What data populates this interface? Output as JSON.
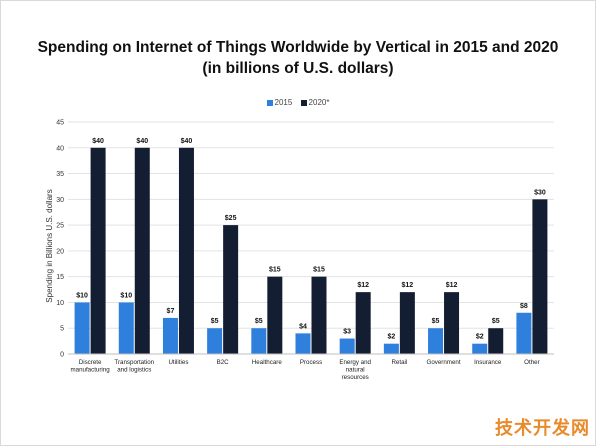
{
  "chart_data": {
    "type": "bar",
    "title": "Spending on Internet of Things Worldwide by Vertical in 2015 and 2020",
    "subtitle": "(in billions of U.S. dollars)",
    "ylabel": "Spending in Billions U.S. dollars",
    "xlabel": "",
    "ylim": [
      0,
      45
    ],
    "yticks": [
      0,
      5,
      10,
      15,
      20,
      25,
      30,
      35,
      40,
      45
    ],
    "grid": true,
    "legend": "top-center",
    "categories": [
      [
        "Discrete",
        "manufacturing"
      ],
      [
        "Transportation",
        "and logistics"
      ],
      [
        "Utilities"
      ],
      [
        "B2C"
      ],
      [
        "Healthcare"
      ],
      [
        "Process"
      ],
      [
        "Energy and",
        "natural",
        "resources"
      ],
      [
        "Retail"
      ],
      [
        "Government"
      ],
      [
        "Insurance"
      ],
      [
        "Other"
      ]
    ],
    "series": [
      {
        "name": "2015",
        "color": "#2f7fdc",
        "values": [
          10,
          10,
          7,
          5,
          5,
          4,
          3,
          2,
          5,
          2,
          8
        ],
        "labels": [
          "$10",
          "$10",
          "$7",
          "$5",
          "$5",
          "$4",
          "$3",
          "$2",
          "$5",
          "$2",
          "$8"
        ]
      },
      {
        "name": "2020*",
        "color": "#131e33",
        "values": [
          40,
          40,
          40,
          25,
          15,
          15,
          12,
          12,
          12,
          5,
          30
        ],
        "labels": [
          "$40",
          "$40",
          "$40",
          "$25",
          "$15",
          "$15",
          "$12",
          "$12",
          "$12",
          "$5",
          "$30"
        ]
      }
    ]
  },
  "watermark": "技术开发网"
}
